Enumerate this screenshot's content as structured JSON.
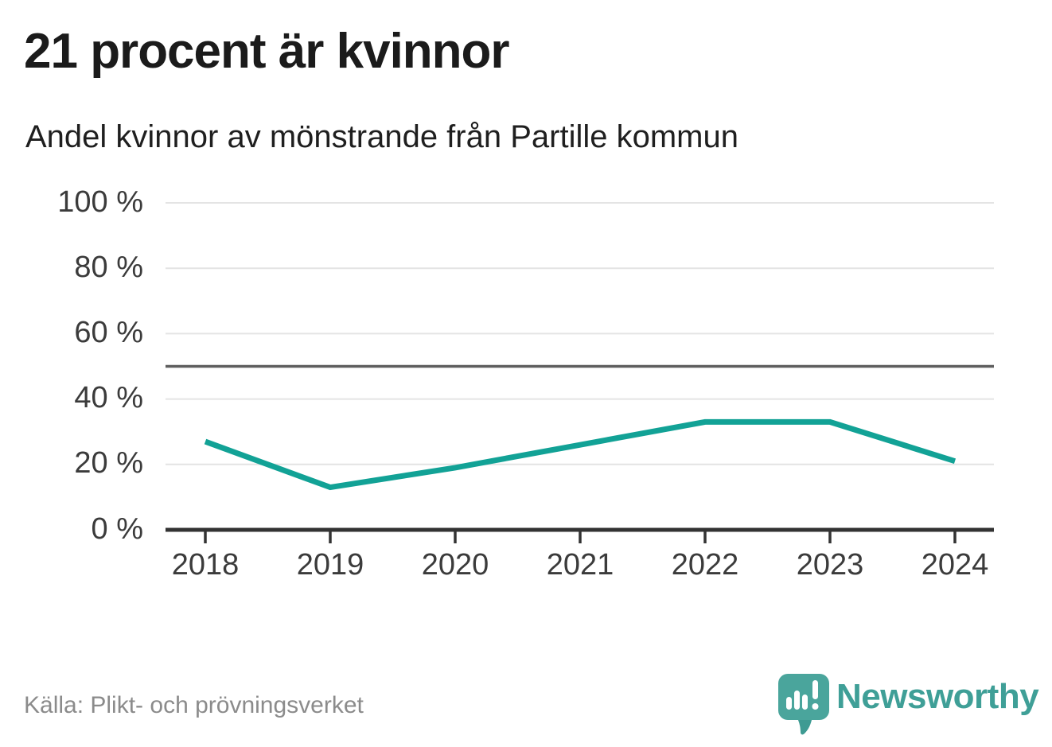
{
  "header": {
    "title": "21 procent är kvinnor",
    "subtitle": "Andel kvinnor av mönstrande från Partille kommun"
  },
  "chart_data": {
    "type": "line",
    "title": "21 procent är kvinnor",
    "subtitle": "Andel kvinnor av mönstrande från Partille kommun",
    "categories": [
      "2018",
      "2019",
      "2020",
      "2021",
      "2022",
      "2023",
      "2024"
    ],
    "series": [
      {
        "name": "Andel kvinnor av mönstrande",
        "values": [
          27,
          13,
          19,
          26,
          33,
          33,
          21
        ]
      }
    ],
    "unit": "%",
    "ylim": [
      0,
      100
    ],
    "yticks": [
      0,
      20,
      40,
      60,
      80,
      100
    ],
    "ytick_labels": [
      "0 %",
      "20 %",
      "40 %",
      "60 %",
      "80 %",
      "100 %"
    ],
    "reference_line": 50,
    "grid": "horizontal",
    "legend": "none",
    "line_color": "#12a296"
  },
  "footer": {
    "source": "Källa: Plikt- och prövningsverket",
    "logo_text": "Newsworthy"
  },
  "colors": {
    "accent_teal": "#12a296",
    "logo_teal": "#4aa59c",
    "logo_text_teal": "#3f9f97",
    "gridline": "#e4e4e4",
    "reference_line": "#5e5e5e",
    "axis": "#333333",
    "tick_label": "#3b3b3b",
    "source_text": "#8b8b8b"
  }
}
